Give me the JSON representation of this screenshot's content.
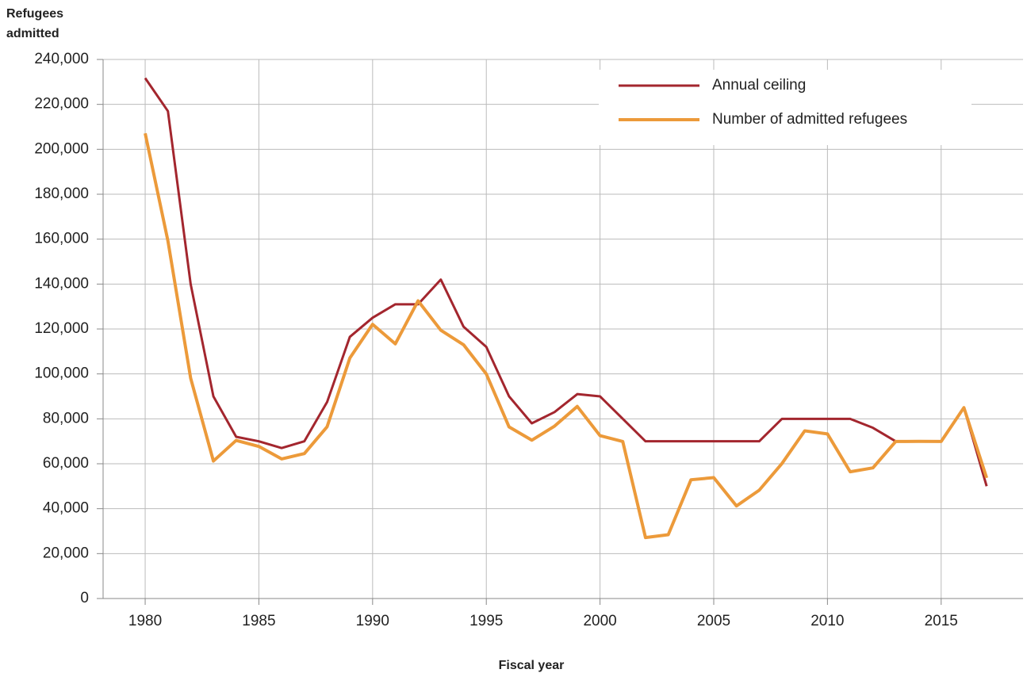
{
  "chart_data": {
    "type": "line",
    "ylabel": [
      "Refugees",
      "admitted"
    ],
    "xlabel": "Fiscal year",
    "x": [
      1980,
      1981,
      1982,
      1983,
      1984,
      1985,
      1986,
      1987,
      1988,
      1989,
      1990,
      1991,
      1992,
      1993,
      1994,
      1995,
      1996,
      1997,
      1998,
      1999,
      2000,
      2001,
      2002,
      2003,
      2004,
      2005,
      2006,
      2007,
      2008,
      2009,
      2010,
      2011,
      2012,
      2013,
      2014,
      2015,
      2016,
      2017
    ],
    "series": [
      {
        "name": "Annual ceiling",
        "color": "#a3262e",
        "width": 3,
        "values": [
          231700,
          217000,
          140000,
          90000,
          72000,
          70000,
          67000,
          70000,
          87500,
          116500,
          125000,
          131000,
          131000,
          142000,
          121000,
          112000,
          90000,
          78000,
          83000,
          91000,
          90000,
          80000,
          70000,
          70000,
          70000,
          70000,
          70000,
          70000,
          80000,
          80000,
          80000,
          80000,
          76000,
          70000,
          70000,
          70000,
          85000,
          50000
        ]
      },
      {
        "name": "Number of admitted refugees",
        "color": "#ec9a3a",
        "width": 4,
        "values": [
          207116,
          159252,
          98096,
          61218,
          70393,
          67704,
          62146,
          64528,
          76483,
          107070,
          122066,
          113389,
          132531,
          119448,
          112981,
          99974,
          76403,
          70488,
          76750,
          85525,
          72515,
          69886,
          27131,
          28422,
          52873,
          53813,
          41223,
          48218,
          60107,
          74654,
          73293,
          56424,
          58179,
          69909,
          69975,
          69933,
          84995,
          53716
        ]
      }
    ],
    "xlim": [
      1978.15,
      2018.6
    ],
    "xticks": [
      1980,
      1985,
      1990,
      1995,
      2000,
      2005,
      2010,
      2015
    ],
    "ylim": [
      0,
      240000
    ],
    "yticks": [
      0,
      {
        "value": 20000,
        "label": "20,000"
      },
      {
        "value": 40000,
        "label": "40,000"
      },
      {
        "value": 60000,
        "label": "60,000"
      },
      {
        "value": 80000,
        "label": "80,000"
      },
      {
        "value": 100000,
        "label": "100,000"
      },
      {
        "value": 120000,
        "label": "120,000"
      },
      {
        "value": 140000,
        "label": "140,000"
      },
      {
        "value": 160000,
        "label": "160,000"
      },
      {
        "value": 180000,
        "label": "180,000"
      },
      {
        "value": 200000,
        "label": "200,000"
      },
      {
        "value": 220000,
        "label": "220,000"
      },
      {
        "value": 240000,
        "label": "240,000"
      }
    ],
    "grid": true,
    "legend": "upper right"
  }
}
